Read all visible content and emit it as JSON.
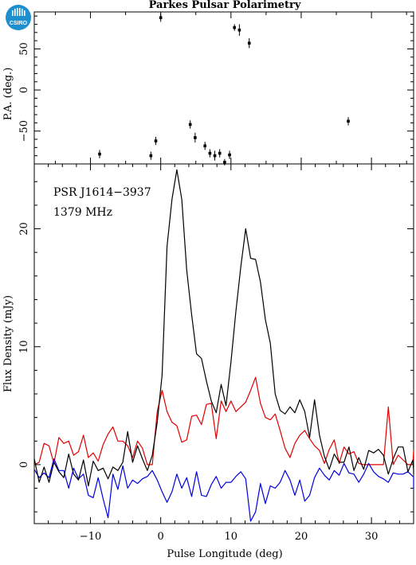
{
  "header": {
    "title": "Parkes Pulsar Polarimetry",
    "logo_text": "CSIRO"
  },
  "annotations": {
    "source": "PSR J1614−3937",
    "frequency": "1379 MHz"
  },
  "colors": {
    "total": "#000000",
    "linear": "#e00000",
    "circular": "#0000e0",
    "logo": "#1d8fcf"
  },
  "chart_data": [
    {
      "type": "scatter",
      "name": "pa_panel",
      "ylabel": "P.A. (deg.)",
      "xlim": [
        -18,
        36
      ],
      "ylim": [
        -90,
        95
      ],
      "yticks": [
        -50,
        0,
        50
      ],
      "ytick_labels": [
        "−50",
        "0",
        "50"
      ],
      "points": [
        {
          "x": -8.7,
          "y": -78,
          "err": 5
        },
        {
          "x": -1.4,
          "y": -80,
          "err": 5
        },
        {
          "x": -0.7,
          "y": -62,
          "err": 5
        },
        {
          "x": 0.0,
          "y": 88,
          "err": 5
        },
        {
          "x": 4.2,
          "y": -42,
          "err": 5
        },
        {
          "x": 4.9,
          "y": -58,
          "err": 6
        },
        {
          "x": 6.3,
          "y": -68,
          "err": 5
        },
        {
          "x": 7.0,
          "y": -77,
          "err": 5
        },
        {
          "x": 7.7,
          "y": -80,
          "err": 6
        },
        {
          "x": 8.4,
          "y": -77,
          "err": 5
        },
        {
          "x": 9.1,
          "y": -88,
          "err": 4
        },
        {
          "x": 9.8,
          "y": -79,
          "err": 5
        },
        {
          "x": 10.5,
          "y": 76,
          "err": 4
        },
        {
          "x": 11.2,
          "y": 73,
          "err": 7
        },
        {
          "x": 12.6,
          "y": 57,
          "err": 6
        },
        {
          "x": 26.7,
          "y": -38,
          "err": 5
        }
      ]
    },
    {
      "type": "line",
      "name": "flux_panel",
      "xlabel": "Pulse Longitude (deg)",
      "ylabel": "Flux Density (mJy)",
      "xlim": [
        -18,
        36
      ],
      "ylim": [
        -5,
        25.5
      ],
      "xticks": [
        -10,
        0,
        10,
        20,
        30
      ],
      "xtick_labels": [
        "−10",
        "0",
        "10",
        "20",
        "30"
      ],
      "yticks": [
        0,
        10,
        20
      ],
      "ytick_labels": [
        "0",
        "10",
        "20"
      ],
      "x_start": -18,
      "x_step": 0.7,
      "series": [
        {
          "key": "total",
          "values": [
            0.5,
            -1.5,
            -0.2,
            -1.5,
            0.2,
            -0.6,
            -1.1,
            0.9,
            -0.8,
            -1.3,
            0.4,
            -1.8,
            0.3,
            -0.5,
            -0.3,
            -1.2,
            -0.2,
            -0.5,
            0.2,
            2.8,
            0.2,
            1.6,
            0.5,
            -0.5,
            0.8,
            3.6,
            7.6,
            18.5,
            22.5,
            25.0,
            22.5,
            16.5,
            12.7,
            9.4,
            9.0,
            7.1,
            5.4,
            4.4,
            6.8,
            5.0,
            8.7,
            13.0,
            16.8,
            20.0,
            17.5,
            17.4,
            15.5,
            12.3,
            10.3,
            6.0,
            4.6,
            4.3,
            4.9,
            4.4,
            5.5,
            4.5,
            2.3,
            5.5,
            2.5,
            0.7,
            -0.4,
            0.9,
            0.2,
            0.2,
            1.5,
            -0.5,
            0.6,
            -0.4,
            1.2,
            1.0,
            1.3,
            0.8,
            -0.8,
            0.5,
            1.5,
            1.5,
            -0.6,
            0.4,
            -0.5,
            -0.8
          ]
        },
        {
          "key": "linear",
          "values": [
            0.0,
            0.2,
            1.8,
            1.6,
            0.1,
            2.3,
            1.8,
            2.0,
            0.8,
            1.1,
            2.5,
            0.6,
            1.0,
            0.3,
            1.7,
            2.6,
            3.2,
            2.0,
            2.0,
            1.6,
            0.6,
            2.0,
            1.4,
            0.0,
            0.0,
            4.5,
            6.3,
            4.5,
            3.6,
            3.3,
            1.9,
            2.1,
            4.1,
            4.2,
            3.4,
            5.1,
            5.2,
            2.2,
            5.4,
            4.5,
            5.4,
            4.5,
            4.9,
            5.3,
            6.3,
            7.4,
            5.2,
            4.0,
            3.8,
            4.3,
            2.9,
            1.4,
            0.6,
            1.8,
            2.5,
            2.9,
            2.2,
            1.6,
            1.2,
            0.1,
            1.3,
            2.1,
            0.1,
            1.5,
            0.9,
            1.1,
            0.1,
            0.0,
            0.0,
            0.0,
            0.0,
            0.0,
            4.9,
            0.0,
            0.8,
            0.4,
            0.0,
            0.0,
            1.2,
            0.0
          ]
        },
        {
          "key": "circular",
          "values": [
            -0.4,
            -1.1,
            -0.7,
            -1.1,
            0.5,
            -0.5,
            -0.5,
            -2.0,
            -0.3,
            -1.2,
            -0.8,
            -2.6,
            -2.8,
            -1.1,
            -2.9,
            -4.5,
            -0.8,
            -2.1,
            -0.1,
            -2.0,
            -1.3,
            -1.6,
            -1.2,
            -1.0,
            -0.5,
            -1.3,
            -2.3,
            -3.2,
            -2.3,
            -0.8,
            -2.0,
            -1.1,
            -2.7,
            -0.6,
            -2.6,
            -2.7,
            -1.7,
            -1.0,
            -2.0,
            -1.5,
            -1.5,
            -1.0,
            -0.6,
            -1.2,
            -4.8,
            -4.0,
            -1.6,
            -3.3,
            -1.8,
            -2.0,
            -1.5,
            -0.5,
            -1.3,
            -2.6,
            -1.3,
            -3.1,
            -2.6,
            -1.1,
            -0.3,
            -0.9,
            -1.3,
            -0.5,
            -0.9,
            0.1,
            -0.7,
            -0.8,
            -1.5,
            -0.8,
            0.1,
            -0.6,
            -1.0,
            -1.2,
            -1.5,
            -0.7,
            -0.8,
            -0.8,
            -0.6,
            -1.0,
            -1.0,
            -2.0
          ]
        }
      ]
    }
  ]
}
